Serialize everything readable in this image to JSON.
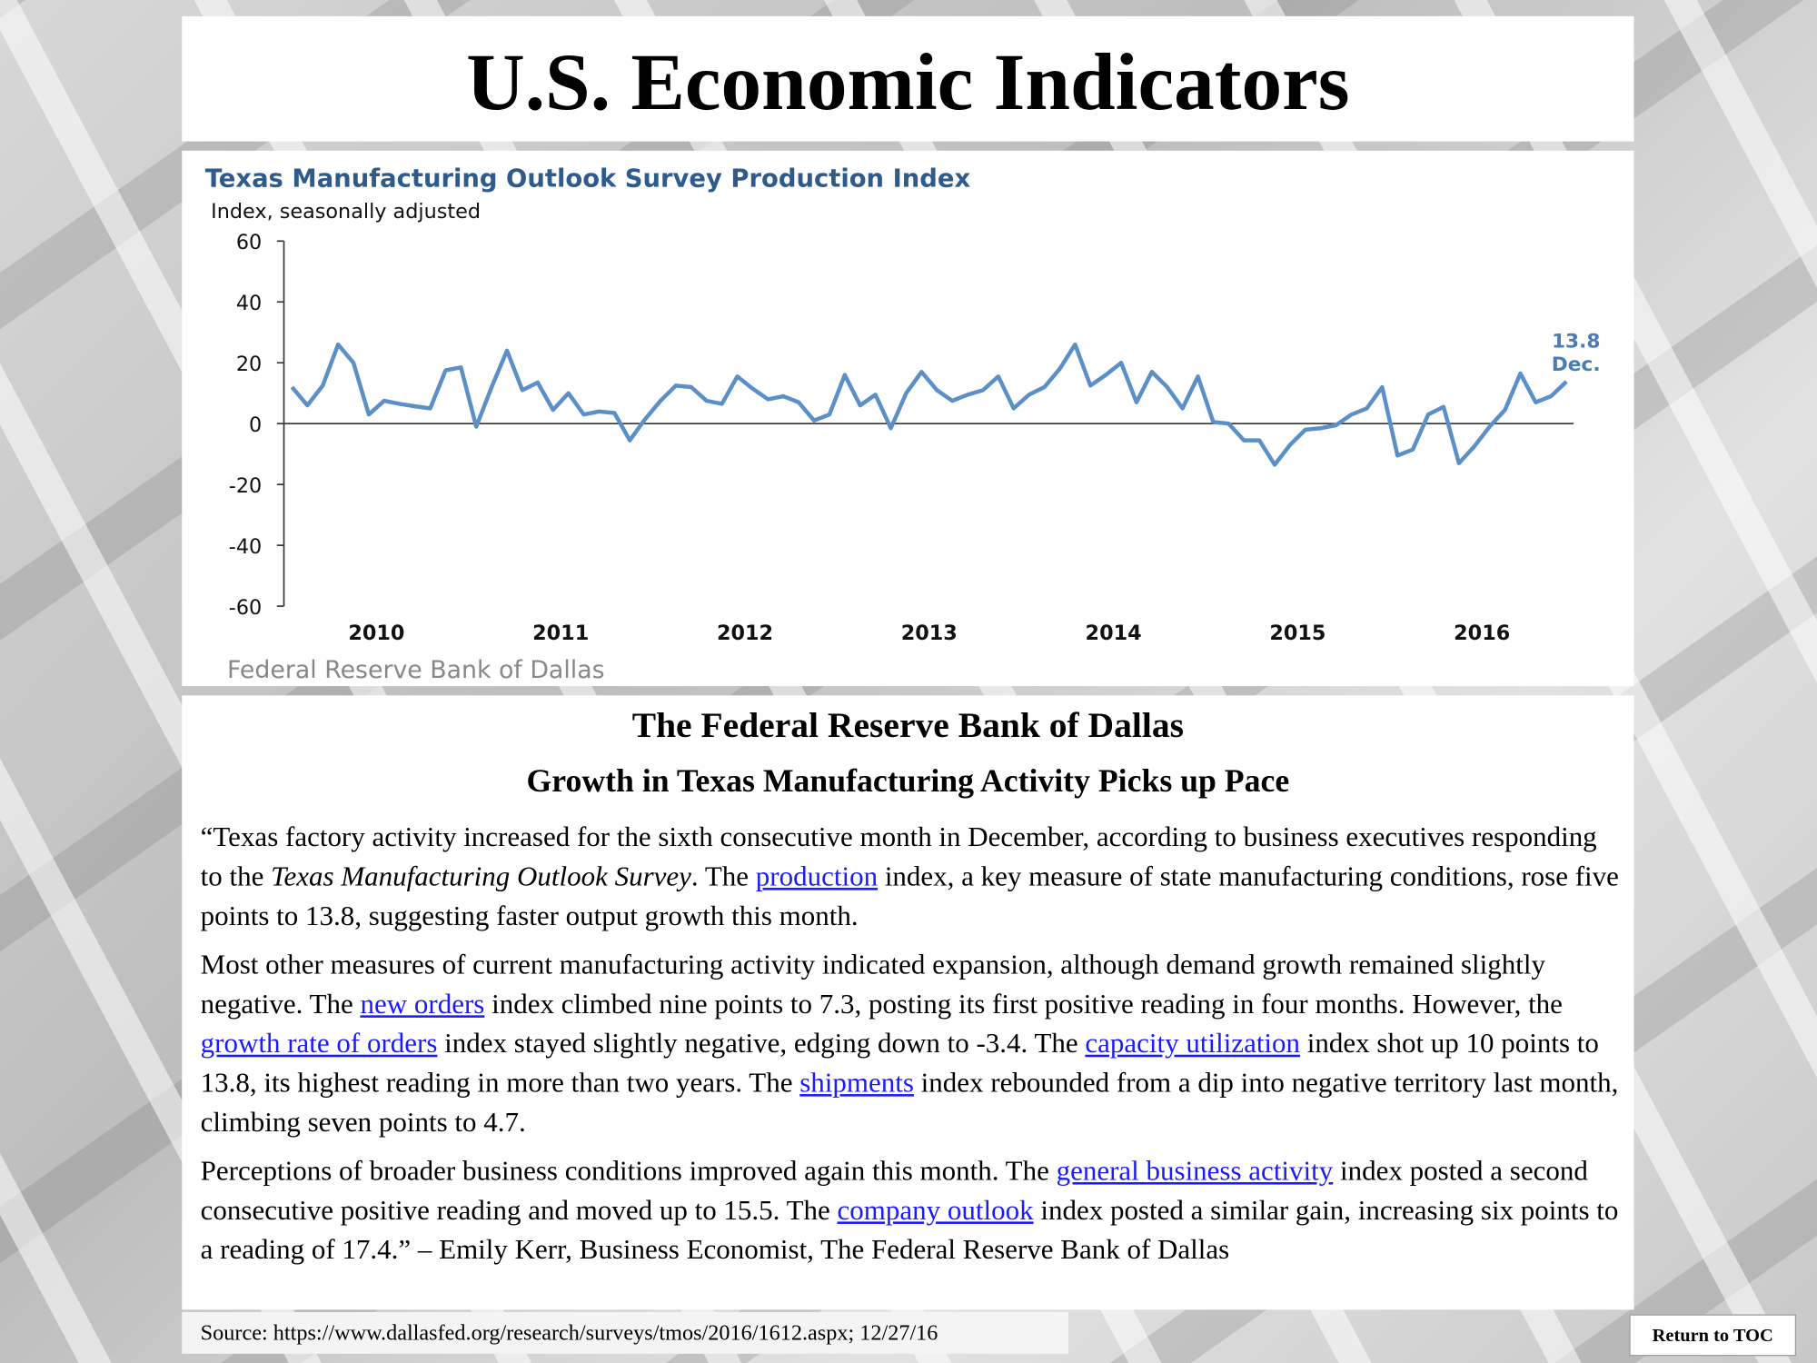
{
  "title": "U.S. Economic Indicators",
  "chart_data": {
    "type": "line",
    "title": "Texas Manufacturing Outlook Survey Production Index",
    "y_axis_label": "Index, seasonally adjusted",
    "source": "Federal Reserve Bank of Dallas",
    "annotation": "Dec.",
    "categories": [
      null,
      null,
      null,
      null,
      null,
      "2010",
      null,
      null,
      null,
      null,
      null,
      null,
      null,
      null,
      null,
      null,
      null,
      "2011",
      null,
      null,
      null,
      null,
      null,
      null,
      null,
      null,
      null,
      null,
      null,
      "2012",
      null,
      null,
      null,
      null,
      null,
      null,
      null,
      null,
      null,
      null,
      null,
      "2013",
      null,
      null,
      null,
      null,
      null,
      null,
      null,
      null,
      null,
      null,
      null,
      "2014",
      null,
      null,
      null,
      null,
      null,
      null,
      null,
      null,
      null,
      null,
      null,
      "2015",
      null,
      null,
      null,
      null,
      null,
      null,
      null,
      null,
      null,
      null,
      null,
      "2016",
      null,
      null,
      null,
      null,
      null,
      null
    ],
    "series": [
      {
        "name": "Production Index",
        "color": "#5b8fc7",
        "values": [
          12,
          6,
          12.5,
          26,
          20,
          3,
          7.5,
          6.5,
          5.7,
          5,
          17.5,
          18.5,
          -1,
          12,
          24,
          11,
          13.5,
          4.5,
          10,
          3,
          4,
          3.5,
          -5.5,
          1.5,
          7.5,
          12.5,
          12,
          7.5,
          6.5,
          15.5,
          11.5,
          8,
          9,
          7,
          1,
          3,
          16,
          6,
          9.5,
          -1.5,
          10,
          17,
          11,
          7.5,
          9.5,
          11,
          15.5,
          5,
          9.5,
          12,
          18,
          26,
          12.5,
          16,
          20,
          7,
          17,
          12,
          5,
          15.5,
          0.5,
          0,
          -5.5,
          -5.5,
          -13.5,
          -7,
          -2,
          -1.5,
          -0.5,
          3,
          5,
          12,
          -10.5,
          -8.5,
          3,
          5.5,
          -13,
          -7.5,
          -1,
          4.5,
          16.5,
          7,
          9,
          13.8
        ]
      }
    ],
    "ylim": [
      -60,
      60
    ],
    "yticks": [
      -60,
      -40,
      -20,
      0,
      20,
      40,
      60
    ]
  },
  "article": {
    "heading": "The Federal Reserve Bank of Dallas",
    "subheading": "Growth in Texas Manufacturing Activity Picks up Pace",
    "paragraphs": [
      [
        {
          "text": "“Texas factory activity increased for the sixth consecutive month in December, according to business executives responding to the "
        },
        {
          "text": "Texas Manufacturing Outlook Survey",
          "style": "italic"
        },
        {
          "text": ".  The "
        },
        {
          "text": "production",
          "style": "link"
        },
        {
          "text": " index, a key measure of state manufacturing conditions, rose five points to 13.8, suggesting faster output growth this month."
        }
      ],
      [
        {
          "text": "Most other measures of current manufacturing activity indicated expansion, although demand growth remained slightly negative.  The "
        },
        {
          "text": "new orders",
          "style": "link"
        },
        {
          "text": " index climbed nine points to 7.3, posting its first positive reading in four months.  However, the "
        },
        {
          "text": "growth rate of orders",
          "style": "link"
        },
        {
          "text": " index stayed slightly negative, edging down to -3.4.  The "
        },
        {
          "text": "capacity utilization",
          "style": "link"
        },
        {
          "text": " index shot up 10 points to 13.8, its highest reading in more than two years. The "
        },
        {
          "text": "shipments",
          "style": "link"
        },
        {
          "text": " index rebounded from a dip into negative territory last month, climbing seven points to 4.7."
        }
      ],
      [
        {
          "text": "Perceptions of broader business conditions improved again this month.  The "
        },
        {
          "text": "general business activity",
          "style": "link"
        },
        {
          "text": " index posted a second consecutive positive reading and moved up to 15.5.  The "
        },
        {
          "text": "company outlook",
          "style": "link"
        },
        {
          "text": " index posted a similar gain, increasing six points to a reading of 17.4.” – Emily Kerr, Business Economist, The Federal Reserve Bank of Dallas"
        }
      ]
    ]
  },
  "footer": {
    "source": "Source: https://www.dallasfed.org/research/surveys/tmos/2016/1612.aspx; 12/27/16",
    "button": "Return to TOC"
  }
}
